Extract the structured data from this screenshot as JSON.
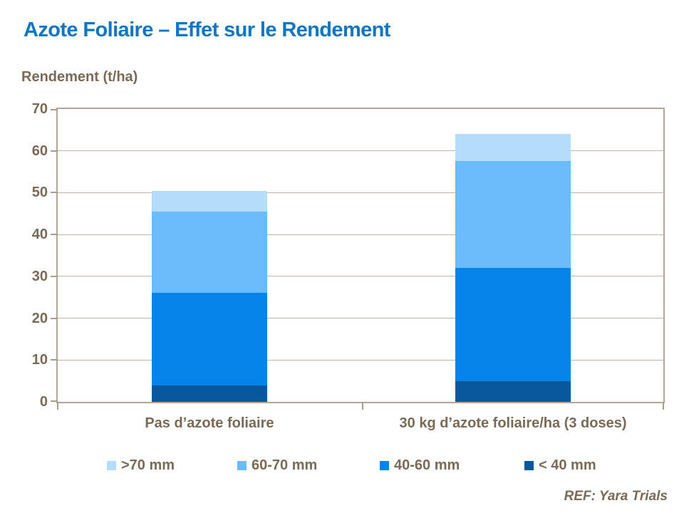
{
  "title": "Azote Foliaire – Effet sur le Rendement",
  "footer": "REF: Yara Trials",
  "colors": {
    "title_blue": "#0E76C4",
    "text_brown": "#7A6A55",
    "plot_border": "#B3A898",
    "gridline": "#BFB6A7"
  },
  "chart_data": {
    "type": "bar",
    "stacked": true,
    "title": "Azote Foliaire – Effet sur le Rendement",
    "ylabel": "Rendement (t/ha)",
    "xlabel": "",
    "ylim": [
      0,
      70
    ],
    "yticks": [
      0,
      10,
      20,
      30,
      40,
      50,
      60,
      70
    ],
    "grid": true,
    "legend_position": "bottom",
    "categories": [
      "Pas d’azote foliaire",
      "30 kg d’azote foliaire/ha (3 doses)"
    ],
    "series": [
      {
        "name": "< 40 mm",
        "color": "#07589D",
        "values": [
          4,
          5
        ]
      },
      {
        "name": "40-60 mm",
        "color": "#0484E8",
        "values": [
          22,
          27
        ]
      },
      {
        "name": "60-70 mm",
        "color": "#6ABBFC",
        "values": [
          19.5,
          25.5
        ]
      },
      {
        "name": ">70 mm",
        "color": "#B5DDFB",
        "values": [
          5,
          6.5
        ]
      }
    ],
    "totals": [
      50.5,
      64
    ],
    "legend": [
      ">70 mm",
      "60-70 mm",
      "40-60 mm",
      "< 40 mm"
    ],
    "source": "REF: Yara Trials"
  }
}
